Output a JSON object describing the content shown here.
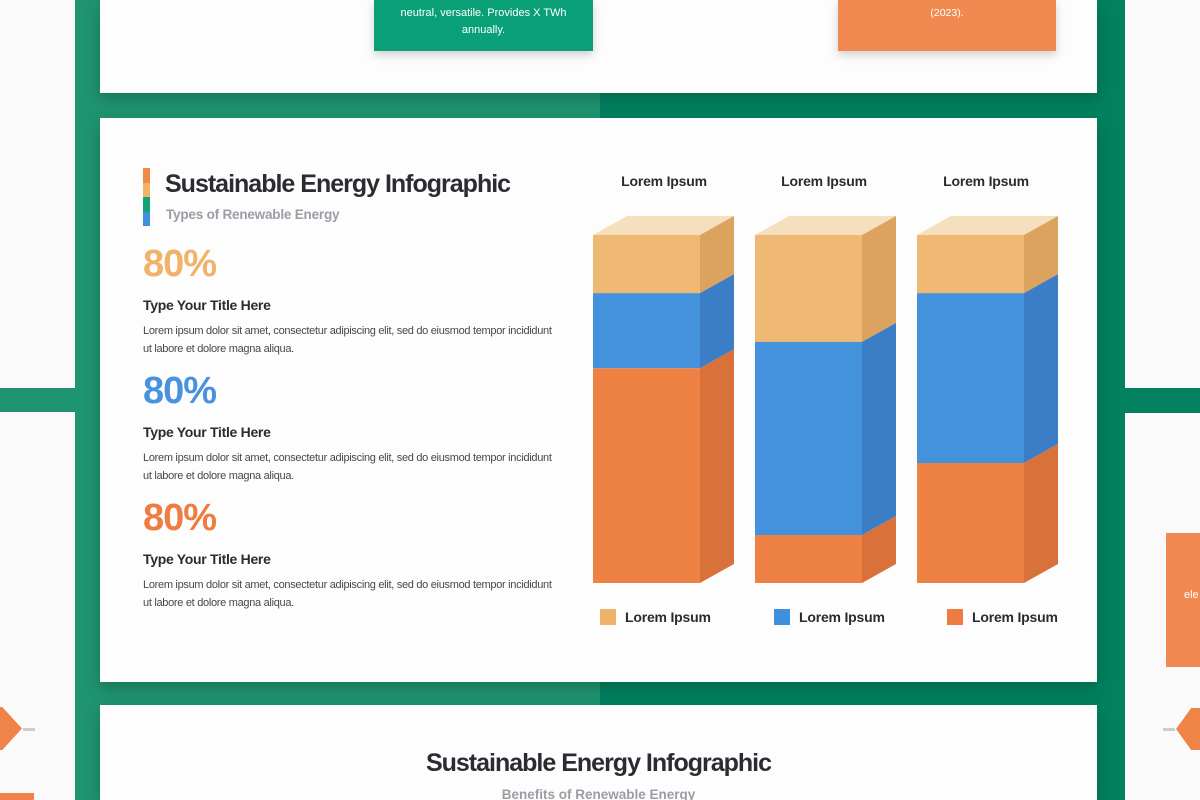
{
  "background": {
    "page": "#fafafb",
    "green_left": "#1f9470",
    "green_right": "#02815f",
    "card": "#fdfdfe"
  },
  "top_card": {
    "green_box": {
      "bg": "#09a078",
      "line1": "neutral, versatile. Provides X TWh",
      "line2": "annually."
    },
    "orange_box": {
      "bg": "#f08a50",
      "text": "(2023)."
    }
  },
  "main_card": {
    "title": "Sustainable Energy Infographic",
    "subtitle": "Types of Renewable Energy",
    "accent_colors": [
      "#ed8a44",
      "#f0b269",
      "#0ea478",
      "#4190dc"
    ],
    "stats": [
      {
        "value": "80%",
        "color": "#f1b26a",
        "title": "Type Your Title Here",
        "body": "Lorem ipsum dolor sit amet, consectetur adipiscing elit, sed do eiusmod tempor incididunt ut labore et dolore magna aliqua."
      },
      {
        "value": "80%",
        "color": "#4a92dd",
        "title": "Type Your Title Here",
        "body": "Lorem ipsum dolor sit amet, consectetur adipiscing elit, sed do eiusmod tempor incididunt ut labore et dolore magna aliqua."
      },
      {
        "value": "80%",
        "color": "#ef7c40",
        "title": "Type Your Title Here",
        "body": "Lorem ipsum dolor sit amet, consectetur adipiscing elit, sed do eiusmod tempor incididunt ut labore et dolore magna aliqua."
      }
    ]
  },
  "chart_data": {
    "type": "bar",
    "subtype": "3d-stacked-column",
    "title": "",
    "categories": [
      "Lorem Ipsum",
      "Lorem Ipsum",
      "Lorem Ipsum"
    ],
    "unit": "% of column height",
    "stack_order": "top-to-bottom",
    "stack_total": 100,
    "series": [
      {
        "name": "Lorem Ipsum",
        "values": [
          16.7,
          30.7,
          16.7
        ],
        "color_front": "#efb974",
        "color_side": "#dca35f",
        "legend_color": "#efb26b"
      },
      {
        "name": "Lorem Ipsum",
        "values": [
          21.6,
          55.5,
          48.8
        ],
        "color_front": "#4592dc",
        "color_side": "#3b7ec5",
        "legend_color": "#3f8fdb"
      },
      {
        "name": "Lorem Ipsum",
        "values": [
          61.7,
          13.8,
          34.5
        ],
        "color_front": "#ee8245",
        "color_side": "#d9713a",
        "legend_color": "#ee7b42"
      }
    ],
    "top_face_color": "#f6dfbd",
    "legend_position": "bottom",
    "axes": "none",
    "grid": false
  },
  "bottom_card": {
    "title": "Sustainable Energy Infographic",
    "subtitle": "Benefits of Renewable Energy"
  },
  "neighbors": {
    "left_green_bar": "#1f9470",
    "right_green_bar": "#02815f",
    "arrow_color": "#f08347",
    "rect_color": "#f08347",
    "right_card_bg": "#f08a52",
    "right_card_text": "ele"
  }
}
